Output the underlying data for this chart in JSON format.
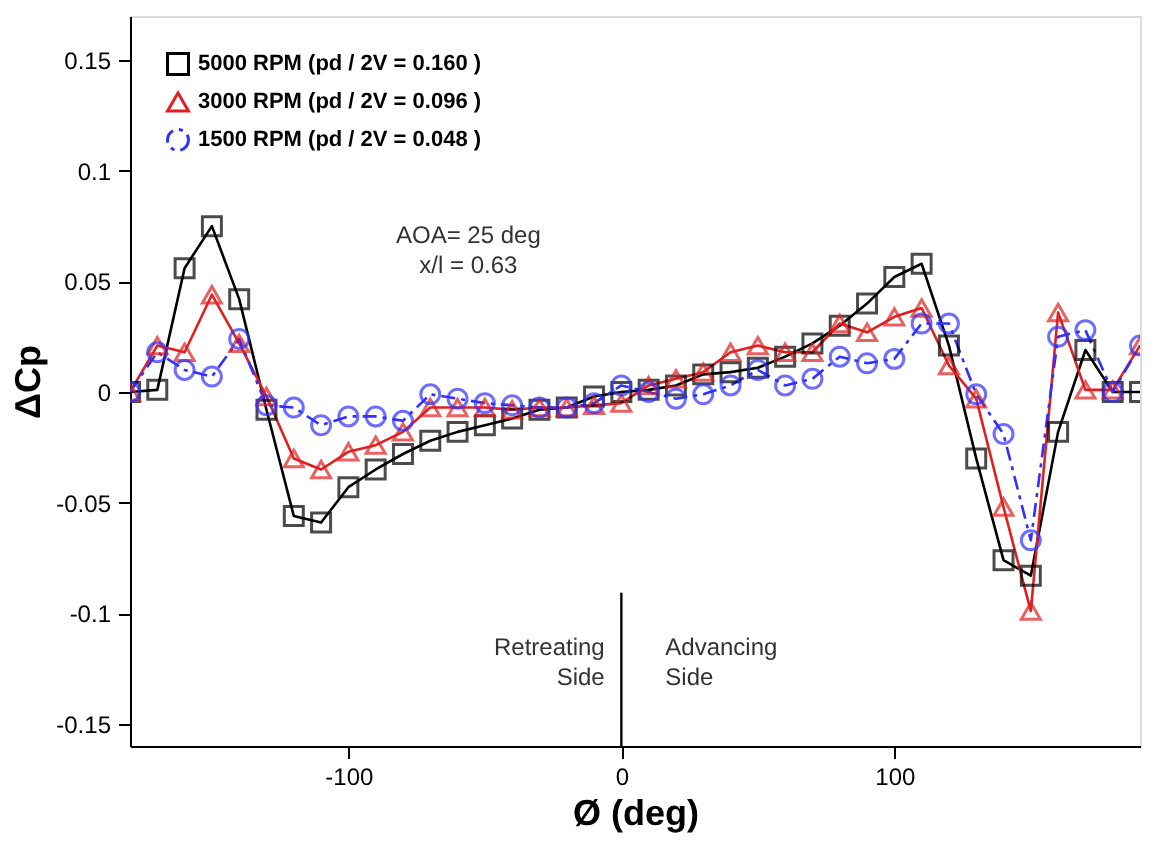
{
  "chart_data": {
    "type": "line",
    "xlabel": "Ø (deg)",
    "ylabel": "ΔCp",
    "x": [
      -180,
      -170,
      -160,
      -150,
      -140,
      -130,
      -120,
      -110,
      -100,
      -90,
      -80,
      -70,
      -60,
      -50,
      -40,
      -30,
      -20,
      -10,
      0,
      10,
      20,
      30,
      40,
      50,
      60,
      70,
      80,
      90,
      100,
      110,
      120,
      130,
      140,
      150,
      160,
      170,
      180,
      190
    ],
    "series": [
      {
        "name": "5000  RPM (pd / 2V = 0.160 )",
        "color": "#000000",
        "marker": "square",
        "line_style": "solid",
        "values": [
          0,
          0.001,
          0.056,
          0.075,
          0.042,
          -0.008,
          -0.056,
          -0.059,
          -0.043,
          -0.035,
          -0.028,
          -0.022,
          -0.018,
          -0.015,
          -0.012,
          -0.008,
          -0.007,
          -0.002,
          0,
          0.001,
          0.003,
          0.008,
          0.009,
          0.011,
          0.016,
          0.022,
          0.03,
          0.04,
          0.052,
          0.058,
          0.021,
          -0.03,
          -0.076,
          -0.083,
          -0.018,
          0.019,
          0,
          0
        ]
      },
      {
        "name": "3000  RPM (pd / 2V = 0.096 )",
        "color": "#e02020",
        "marker": "triangle",
        "line_style": "solid",
        "values": [
          0,
          0.021,
          0.018,
          0.044,
          0.022,
          -0.002,
          -0.03,
          -0.035,
          -0.027,
          -0.024,
          -0.018,
          -0.007,
          -0.007,
          -0.007,
          -0.008,
          -0.007,
          -0.007,
          -0.006,
          -0.005,
          0.003,
          0.006,
          0.009,
          0.018,
          0.021,
          0.018,
          0.018,
          0.031,
          0.027,
          0.034,
          0.038,
          0.012,
          -0.003,
          -0.052,
          -0.099,
          0.036,
          0.001,
          0.001,
          0.021
        ]
      },
      {
        "name": "1500  RPM (pd / 2V = 0.048 )",
        "color": "#3030ff",
        "marker": "circle",
        "line_style": "dashed",
        "values": [
          0,
          0.018,
          0.01,
          0.007,
          0.024,
          -0.006,
          -0.007,
          -0.015,
          -0.011,
          -0.011,
          -0.013,
          -0.001,
          -0.003,
          -0.005,
          -0.006,
          -0.007,
          -0.007,
          -0.005,
          0.003,
          0,
          -0.003,
          -0.001,
          0.003,
          0.01,
          0.003,
          0.006,
          0.016,
          0.013,
          0.015,
          0.031,
          0.031,
          -0.001,
          -0.019,
          -0.067,
          0.025,
          0.028,
          0,
          0.021
        ]
      }
    ],
    "xlim": [
      -180,
      190
    ],
    "xticks": [
      -100,
      0,
      100
    ],
    "ylim": [
      -0.16,
      0.17
    ],
    "yticks": [
      -0.15,
      -0.1,
      -0.05,
      0,
      0.05,
      0.1,
      0.15
    ],
    "ref_lines": [
      {
        "axis": "x",
        "value": 0,
        "label": null
      }
    ],
    "annotations": [
      "AOA= 25 deg\nx/l = 0.63",
      "Retreating\nSide",
      "Advancing\nSide"
    ],
    "legend": "top left",
    "grid": false
  }
}
